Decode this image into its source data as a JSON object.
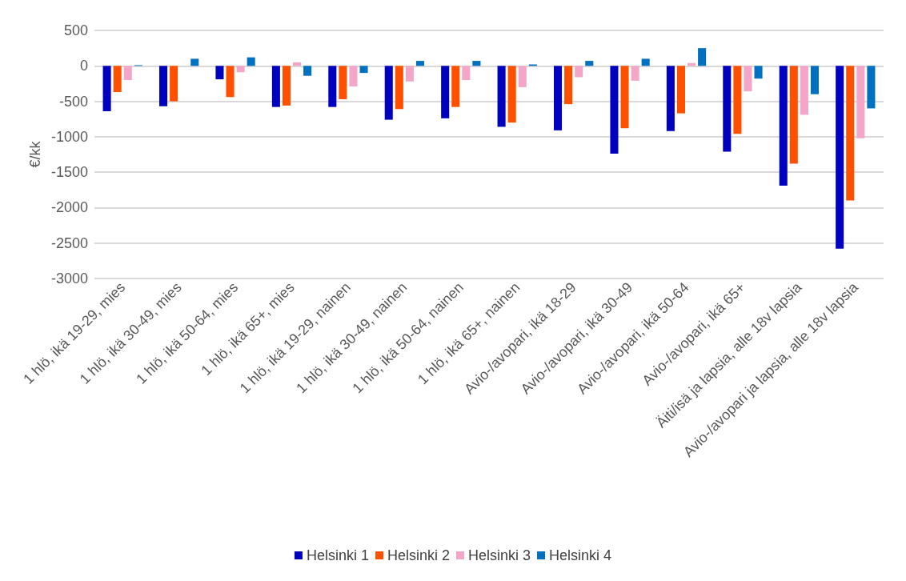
{
  "chart_data": {
    "type": "bar",
    "ylabel": "€/kk",
    "categories": [
      "1 hlö, ikä 19-29, mies",
      "1 hlö, ikä 30-49, mies",
      "1 hlö, ikä 50-64, mies",
      "1 hlö, ikä 65+, mies",
      "1 hlö, ikä 19-29, nainen",
      "1 hlö, ikä 30-49, nainen",
      "1 hlö, ikä 50-64, nainen",
      "1 hlö, ikä 65+, nainen",
      "Avio-/avopari, ikä 18-29",
      "Avio-/avopari, ikä 30-49",
      "Avio-/avopari, ikä 50-64",
      "Avio-/avopari, ikä 65+",
      "Äiti/isä ja lapsia, alle 18v lapsia",
      "Avio-/avopari ja lapsia, alle 18v lapsia"
    ],
    "series": [
      {
        "name": "Helsinki 1",
        "color": "#0000bf",
        "values": [
          -640,
          -570,
          -190,
          -580,
          -580,
          -760,
          -740,
          -860,
          -910,
          -1240,
          -920,
          -1210,
          -1690,
          -2580
        ]
      },
      {
        "name": "Helsinki 2",
        "color": "#ff5000",
        "values": [
          -370,
          -500,
          -440,
          -560,
          -470,
          -610,
          -580,
          -800,
          -540,
          -880,
          -670,
          -960,
          -1380,
          -1900
        ]
      },
      {
        "name": "Helsinki 3",
        "color": "#f4a6c8",
        "values": [
          -200,
          0,
          -90,
          50,
          -290,
          -220,
          -200,
          -300,
          -160,
          -210,
          40,
          -360,
          -690,
          -1020
        ]
      },
      {
        "name": "Helsinki 4",
        "color": "#0070c0",
        "values": [
          10,
          100,
          120,
          -140,
          -100,
          70,
          70,
          20,
          70,
          100,
          250,
          -180,
          -400,
          -600
        ]
      }
    ],
    "ylim": [
      -3000,
      500
    ],
    "yticks": [
      500,
      0,
      -500,
      -1000,
      -1500,
      -2000,
      -2500,
      -3000
    ],
    "grid": "y",
    "legend": "bottom"
  }
}
